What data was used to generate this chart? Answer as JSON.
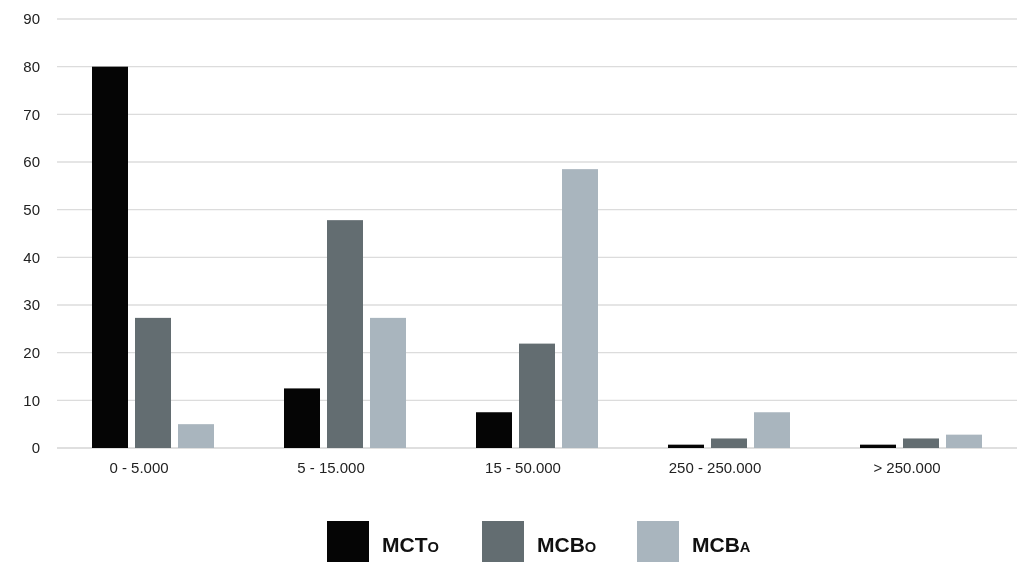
{
  "chart_data": {
    "type": "bar",
    "categories": [
      "0 - 5.000",
      "5 - 15.000",
      "15 - 50.000",
      "250 - 250.000",
      "> 250.000"
    ],
    "series": [
      {
        "name": "MCT$_{O}$",
        "color": "#050505",
        "values": [
          80,
          12.5,
          7.5,
          0.7,
          0.7
        ]
      },
      {
        "name": "MCB$_{O}$",
        "color": "#636d71",
        "values": [
          27.3,
          47.8,
          21.9,
          2,
          2
        ]
      },
      {
        "name": "MCB$_{A}$",
        "color": "#a9b5be",
        "values": [
          5,
          27.3,
          58.5,
          7.5,
          2.8
        ]
      }
    ],
    "ylim": [
      0,
      90
    ],
    "yticks": [
      0,
      10,
      20,
      30,
      40,
      50,
      60,
      70,
      80,
      90
    ],
    "grid": "y",
    "legend": "bottom"
  }
}
